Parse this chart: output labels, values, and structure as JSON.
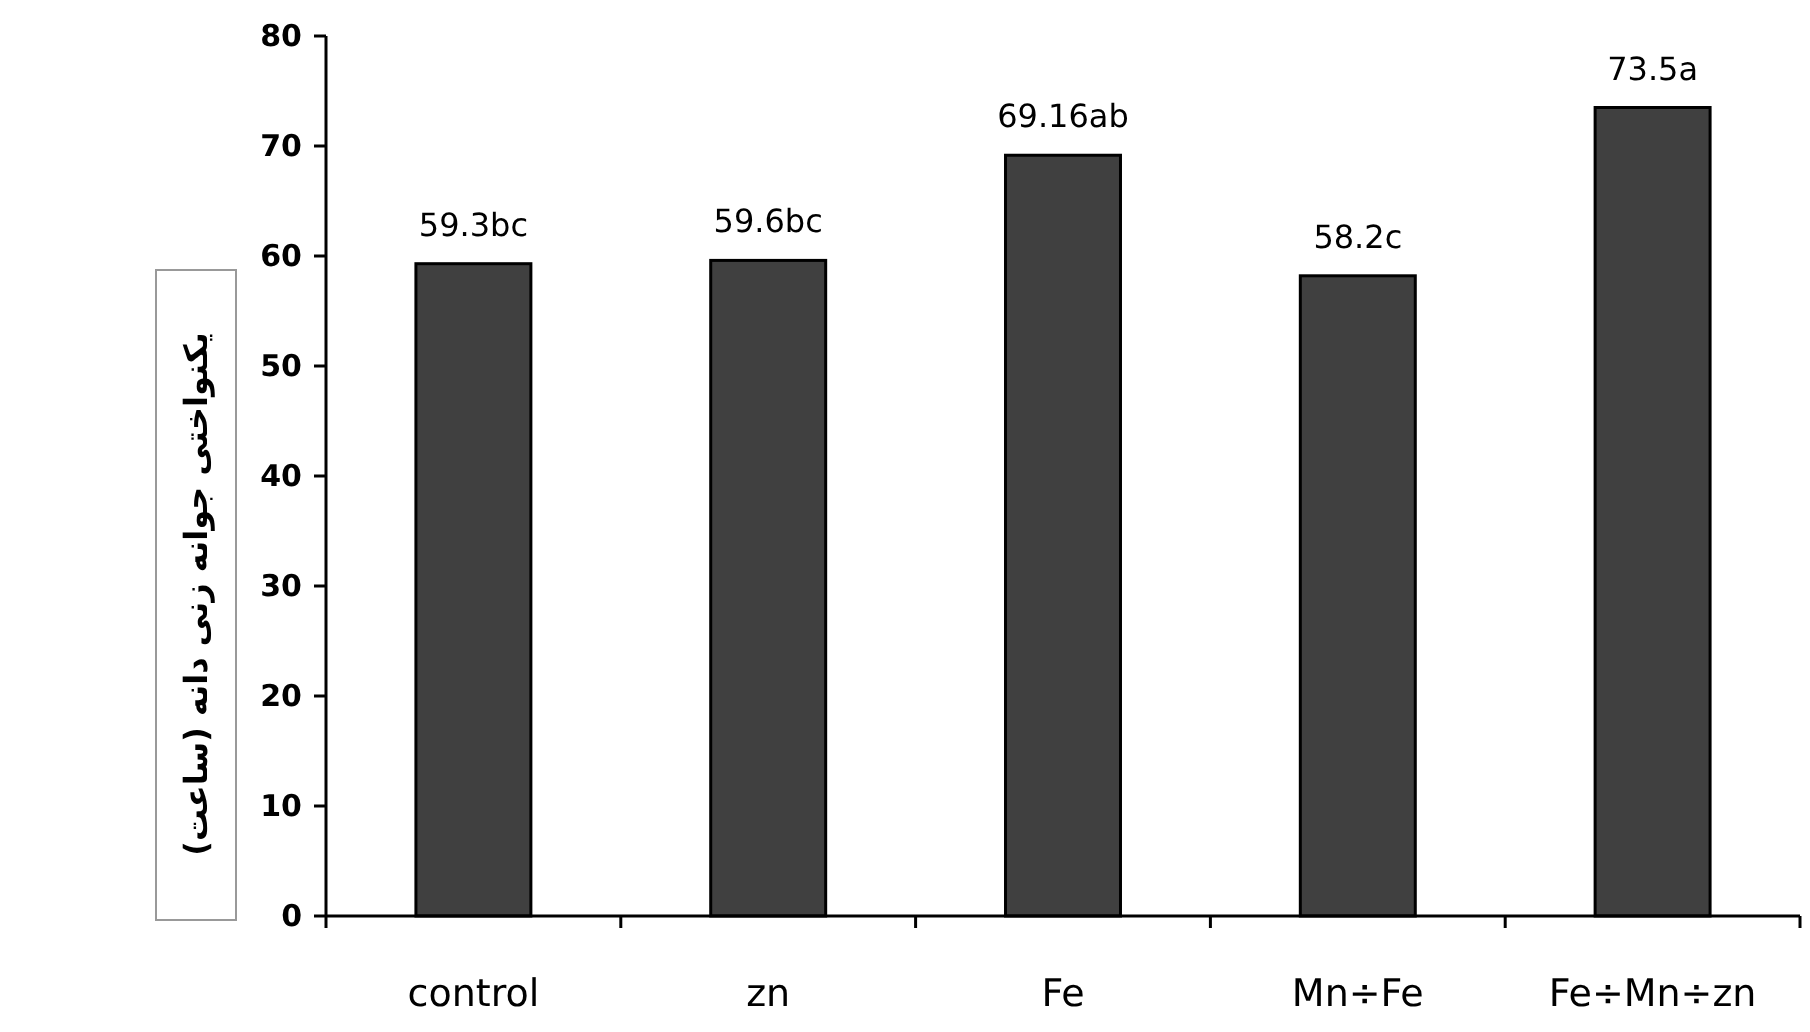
{
  "chart_data": {
    "type": "bar",
    "ylabel": "یکنواختی جوانه زنی دانه (ساعت)",
    "categories": [
      "control",
      "zn",
      "Fe",
      "Mn÷Fe",
      "Fe÷Mn÷zn"
    ],
    "values": [
      59.3,
      59.6,
      69.16,
      58.2,
      73.5
    ],
    "value_labels": [
      "59.3bc",
      "59.6bc",
      "69.16ab",
      "58.2c",
      "73.5a"
    ],
    "color": "#404040",
    "ylim": [
      0,
      80
    ],
    "yticks": [
      0,
      10,
      20,
      30,
      40,
      50,
      60,
      70,
      80
    ],
    "grid": false
  }
}
